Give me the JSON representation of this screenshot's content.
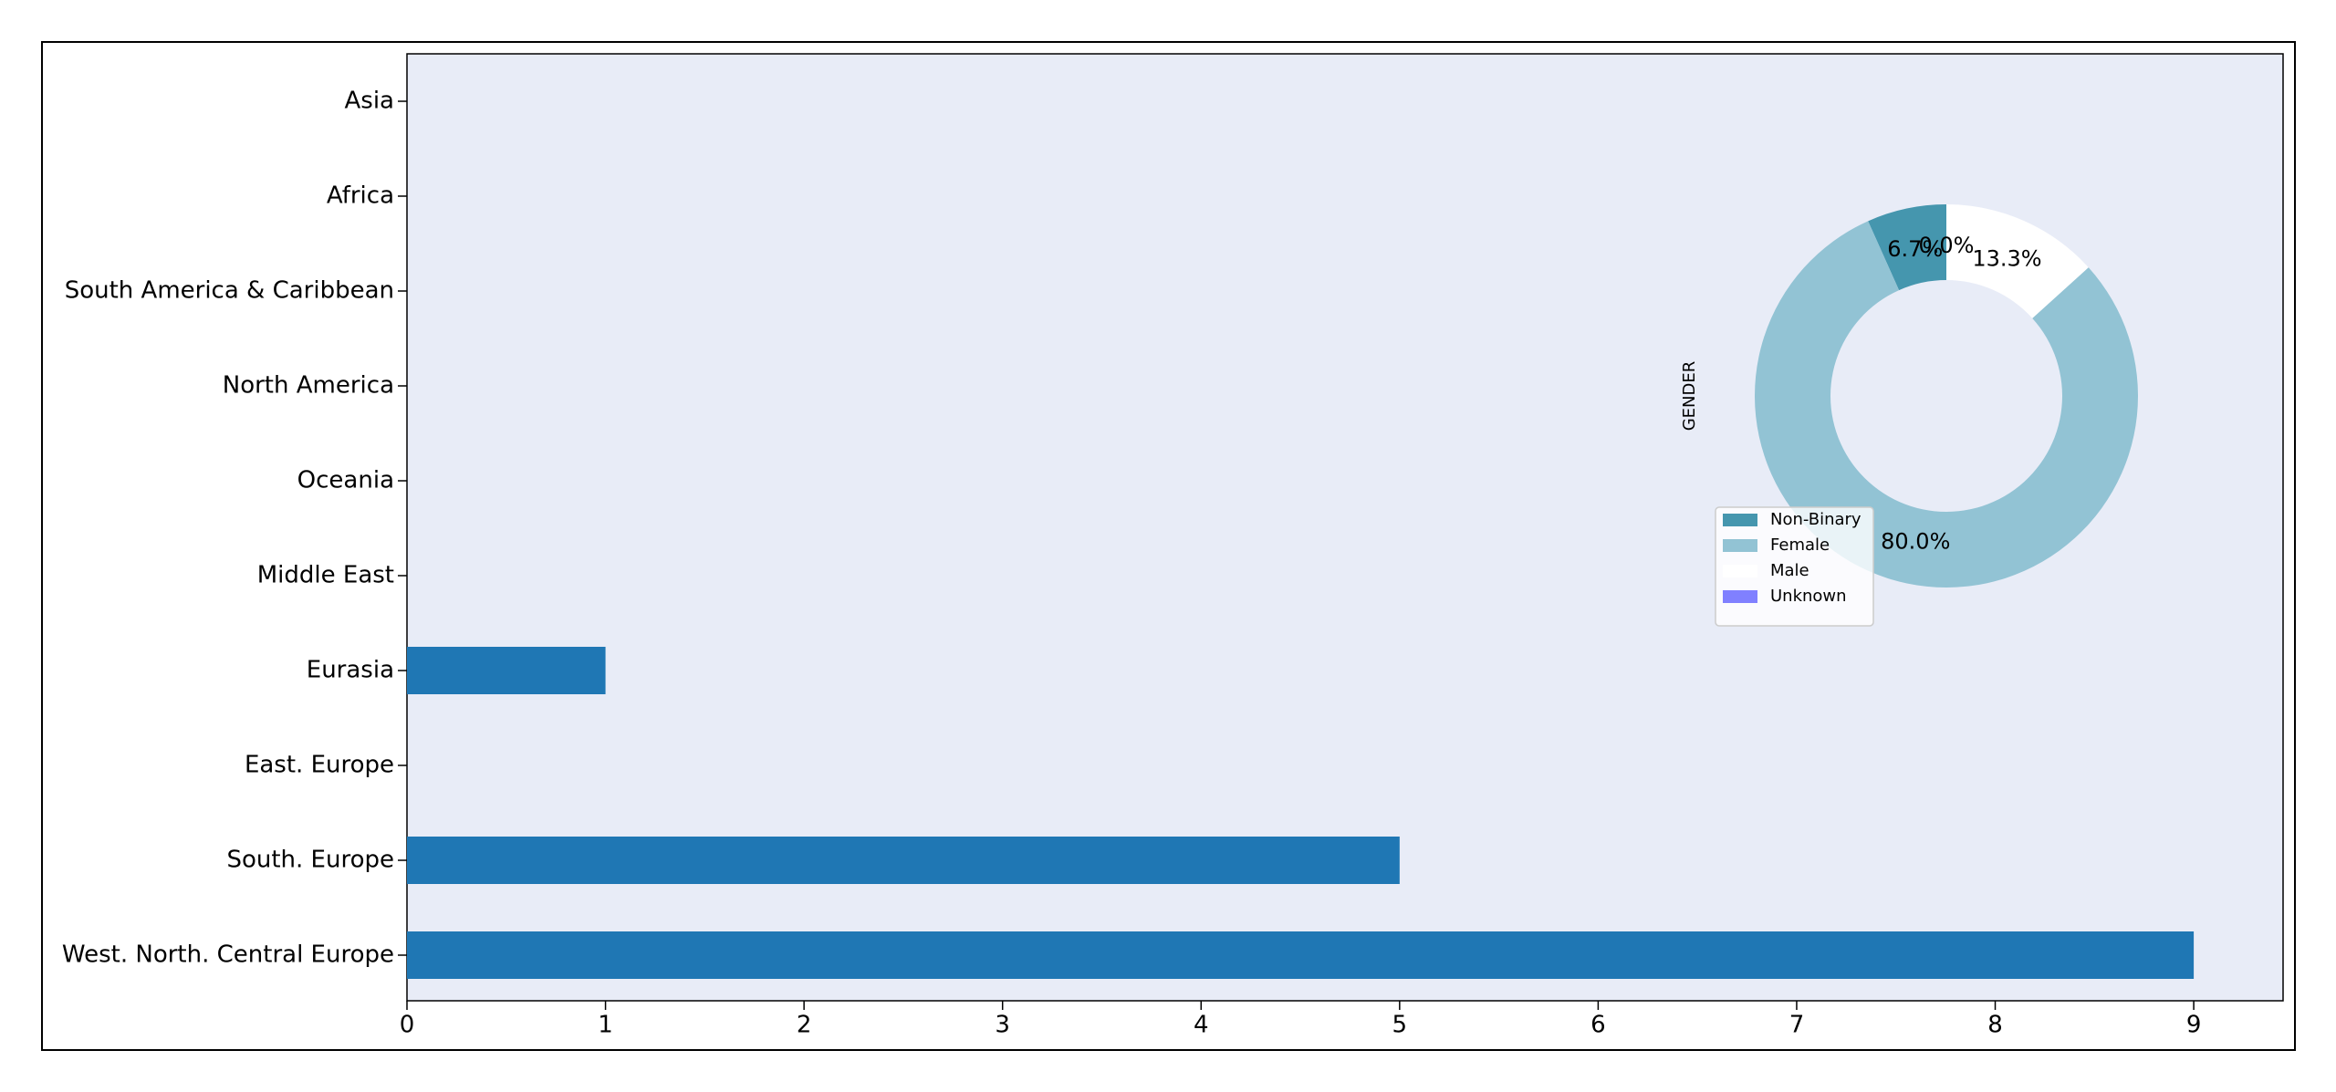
{
  "chart_data": [
    {
      "type": "barh",
      "categories": [
        "Asia",
        "Africa",
        "South America & Caribbean",
        "North America",
        "Oceania",
        "Middle East",
        "Eurasia",
        "East. Europe",
        "South. Europe",
        "West. North. Central Europe"
      ],
      "values": [
        0,
        0,
        0,
        0,
        0,
        0,
        1,
        0,
        5,
        9
      ],
      "color": "#1f77b4",
      "xlim": [
        0,
        9.45
      ],
      "xticks": [
        0,
        1,
        2,
        3,
        4,
        5,
        6,
        7,
        8,
        9
      ]
    },
    {
      "type": "pie",
      "ylabel": "GENDER",
      "categories": [
        "Non-Binary",
        "Female",
        "Male",
        "Unknown"
      ],
      "values": [
        6.7,
        80.0,
        13.3,
        0.0
      ],
      "value_labels": [
        "6.7%",
        "80.0%",
        "13.3%",
        "0.0%"
      ],
      "colors": [
        "#4596ae",
        "#92c3d4",
        "#ffffff",
        "#8080ff"
      ],
      "donut": true,
      "legend": "lower left"
    }
  ]
}
